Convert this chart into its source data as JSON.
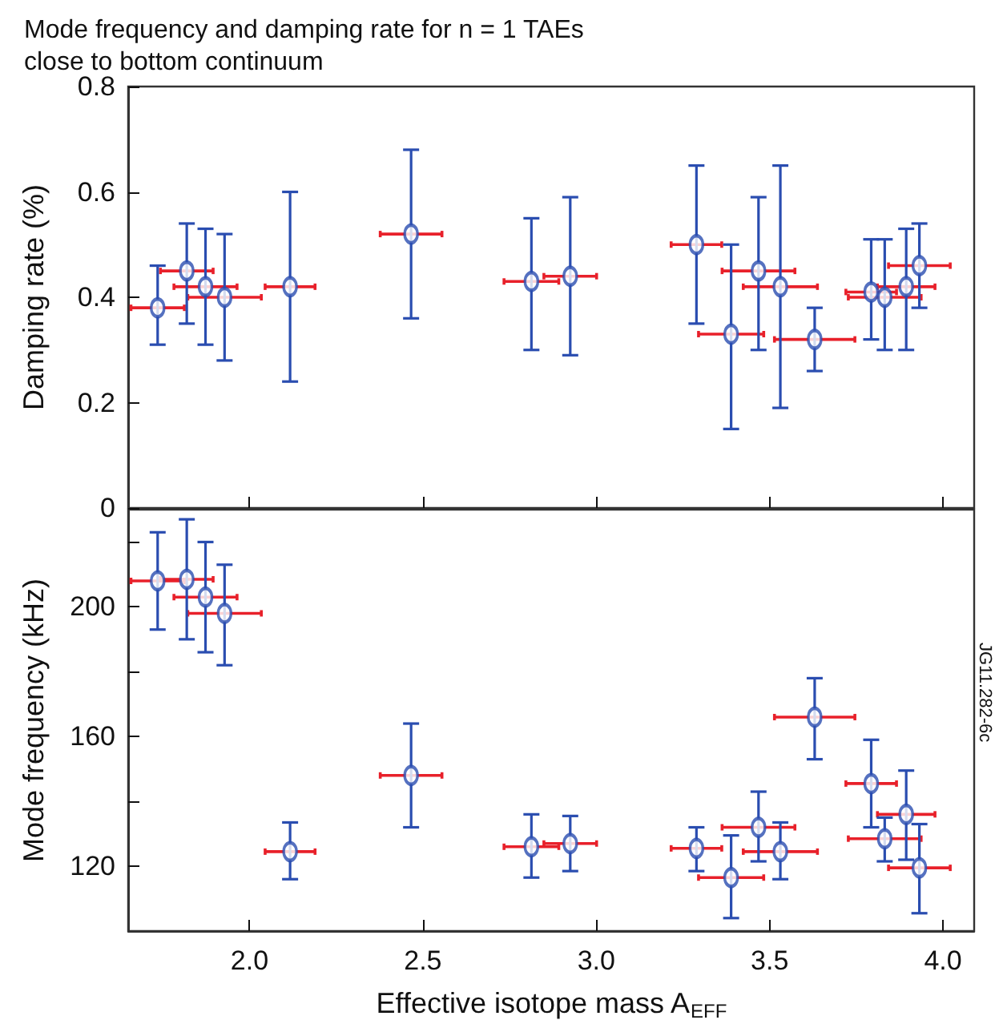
{
  "chart_data": [
    {
      "type": "scatter",
      "title": "Mode frequency and damping rate for n = 1 TAEs\nclose to bottom continuum",
      "ylabel": "Damping rate (%)",
      "color": "#2a4db0",
      "marker": "circle",
      "tick_labels": "y",
      "x": [
        1.735,
        1.819,
        1.873,
        1.928,
        2.117,
        2.466,
        2.813,
        2.925,
        3.289,
        3.389,
        3.468,
        3.531,
        3.63,
        3.793,
        3.832,
        3.894,
        3.932
      ],
      "values": [
        0.38,
        0.45,
        0.42,
        0.4,
        0.42,
        0.52,
        0.43,
        0.44,
        0.5,
        0.33,
        0.45,
        0.42,
        0.32,
        0.41,
        0.4,
        0.42,
        0.46
      ],
      "errors": [
        [
          0.31,
          0.46
        ],
        [
          0.35,
          0.54
        ],
        [
          0.31,
          0.53
        ],
        [
          0.28,
          0.52
        ],
        [
          0.24,
          0.6
        ],
        [
          0.36,
          0.68
        ],
        [
          0.3,
          0.55
        ],
        [
          0.29,
          0.59
        ],
        [
          0.35,
          0.65
        ],
        [
          0.15,
          0.5
        ],
        [
          0.3,
          0.59
        ],
        [
          0.19,
          0.65
        ],
        [
          0.26,
          0.38
        ],
        [
          0.32,
          0.51
        ],
        [
          0.3,
          0.51
        ],
        [
          0.3,
          0.53
        ],
        [
          0.38,
          0.54
        ]
      ],
      "xerrors": [
        0.077,
        0.076,
        0.091,
        0.106,
        0.072,
        0.089,
        0.079,
        0.076,
        0.073,
        0.094,
        0.105,
        0.107,
        0.116,
        0.073,
        0.105,
        0.083,
        0.089
      ],
      "xlim": [
        1.65,
        4.09
      ],
      "xticks": [
        {
          "value": 2,
          "label": null
        },
        {
          "value": 2.5,
          "label": null
        },
        {
          "value": 3,
          "label": null
        },
        {
          "value": 3.5,
          "label": null
        },
        {
          "value": 4,
          "label": null
        }
      ],
      "ylim": [
        0,
        0.8
      ],
      "yticks": [
        {
          "value": 0,
          "label": "0"
        },
        {
          "value": 0.2,
          "label": "0.2"
        },
        {
          "value": 0.4,
          "label": "0.4"
        },
        {
          "value": 0.6,
          "label": "0.6"
        },
        {
          "value": 0.8,
          "label": "0.8"
        }
      ]
    },
    {
      "type": "scatter",
      "xlabel": "Effective isotope mass A$_{EFF}$",
      "ylabel": "Mode frequency (kHz)",
      "color": "#2a4db0",
      "marker": "circle",
      "annotations": [
        "JG11.282-6c"
      ],
      "x": [
        1.735,
        1.819,
        1.873,
        1.928,
        2.117,
        2.466,
        2.813,
        2.925,
        3.289,
        3.389,
        3.468,
        3.531,
        3.63,
        3.793,
        3.832,
        3.894,
        3.932
      ],
      "values": [
        208,
        208.5,
        203,
        198,
        124.5,
        148,
        126,
        127,
        125.5,
        116.5,
        132,
        124.5,
        166,
        145.5,
        128.5,
        136,
        119.5
      ],
      "errors": [
        [
          193,
          223
        ],
        [
          190,
          227
        ],
        [
          186,
          220
        ],
        [
          182,
          213
        ],
        [
          116,
          133.5
        ],
        [
          132,
          164
        ],
        [
          116.5,
          136
        ],
        [
          118.5,
          135.5
        ],
        [
          118.5,
          132
        ],
        [
          104,
          129.5
        ],
        [
          121.5,
          143
        ],
        [
          116,
          133.5
        ],
        [
          153,
          178
        ],
        [
          132,
          159
        ],
        [
          121.5,
          135
        ],
        [
          122,
          149.5
        ],
        [
          105.5,
          133
        ]
      ],
      "xerrors": [
        0.077,
        0.076,
        0.091,
        0.106,
        0.072,
        0.089,
        0.079,
        0.076,
        0.073,
        0.094,
        0.105,
        0.107,
        0.116,
        0.073,
        0.105,
        0.083,
        0.089
      ],
      "xlim": [
        1.65,
        4.09
      ],
      "xticks": [
        {
          "value": 2,
          "label": "2.0"
        },
        {
          "value": 2.5,
          "label": "2.5"
        },
        {
          "value": 3,
          "label": "3.0"
        },
        {
          "value": 3.5,
          "label": "3.5"
        },
        {
          "value": 4,
          "label": "4.0"
        }
      ],
      "ylim": [
        100,
        230
      ],
      "yticks": [
        {
          "value": 120,
          "label": "120"
        },
        {
          "value": 140,
          "label": null
        },
        {
          "value": 160,
          "label": "160"
        },
        {
          "value": 180,
          "label": null
        },
        {
          "value": 200,
          "label": "200"
        },
        {
          "value": 220,
          "label": null
        }
      ]
    }
  ]
}
